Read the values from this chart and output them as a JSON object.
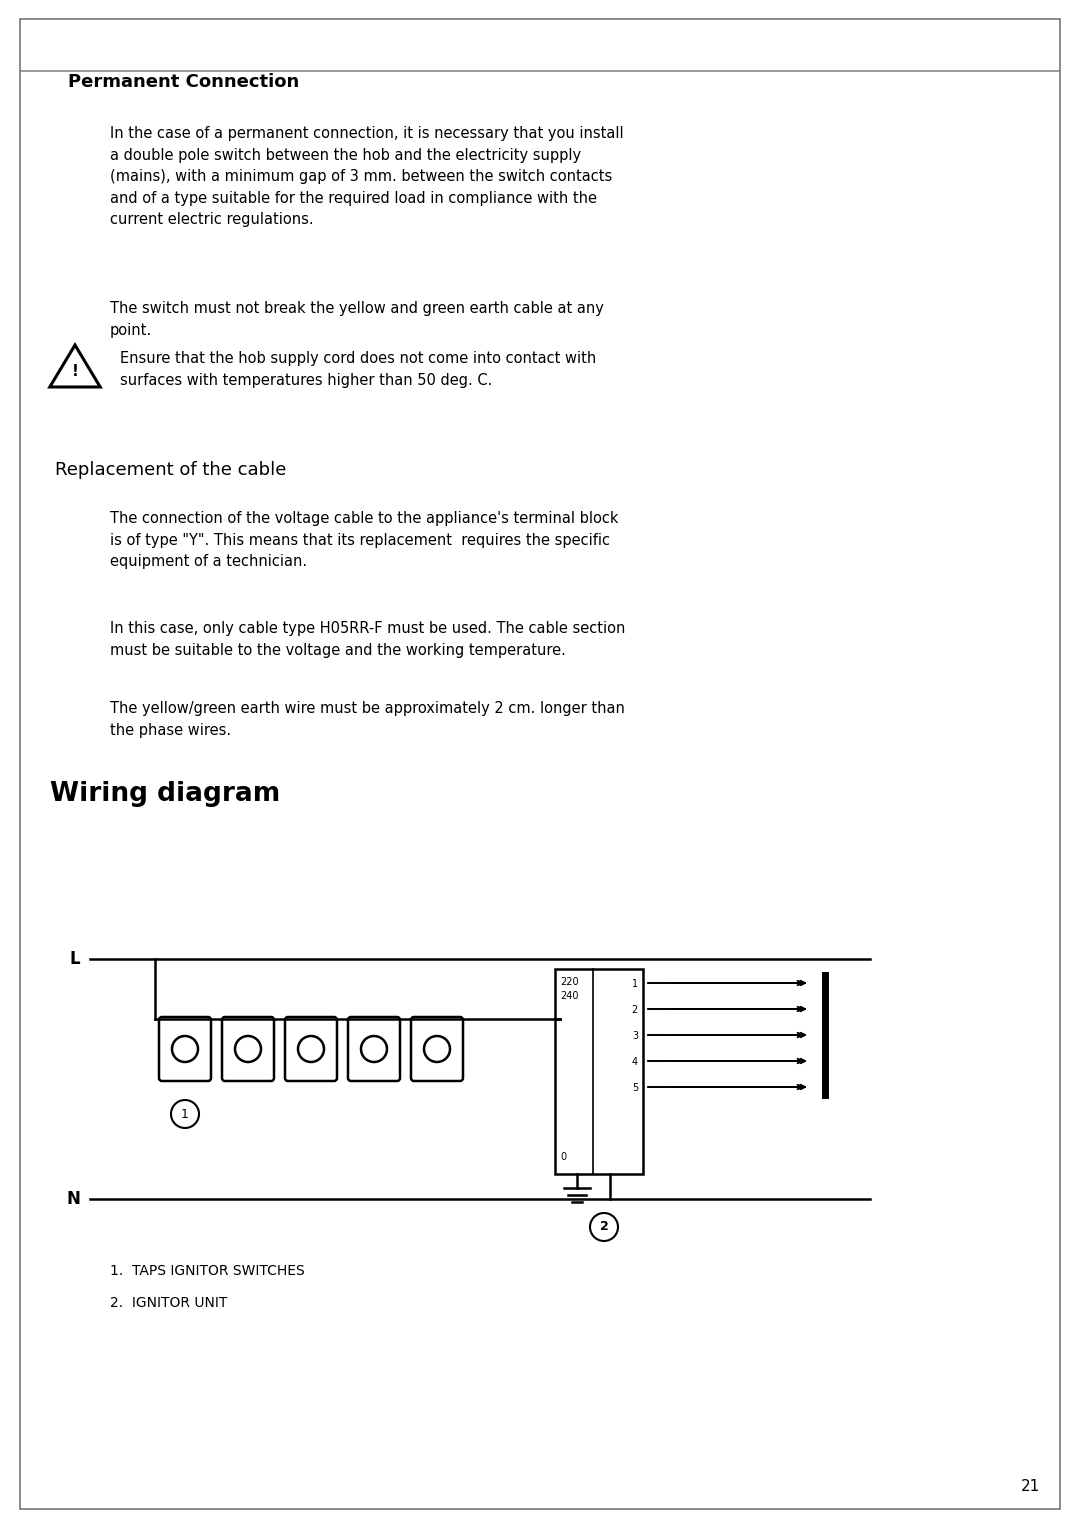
{
  "bg_color": "#ffffff",
  "border_color": "#777777",
  "page_number": "21",
  "section1_title": "Permanent Connection",
  "section1_para1": "In the case of a permanent connection, it is necessary that you install\na double pole switch between the hob and the electricity supply\n(mains), with a minimum gap of 3 mm. between the switch contacts\nand of a type suitable for the required load in compliance with the\ncurrent electric regulations.",
  "section1_para2": "The switch must not break the yellow and green earth cable at any\npoint.",
  "section1_warning": "Ensure that the hob supply cord does not come into contact with\nsurfaces with temperatures higher than 50 deg. C.",
  "section2_title": "Replacement of the cable",
  "section2_para1": "The connection of the voltage cable to the appliance's terminal block\nis of type \"Y\". This means that its replacement  requires the specific\nequipment of a technician.",
  "section2_para2": "In this case, only cable type H05RR-F must be used. The cable section\nmust be suitable to the voltage and the working temperature.",
  "section2_para3": "The yellow/green earth wire must be approximately 2 cm. longer than\nthe phase wires.",
  "section3_title": "Wiring diagram",
  "legend1": "1.  TAPS IGNITOR SWITCHES",
  "legend2": "2.  IGNITOR UNIT"
}
